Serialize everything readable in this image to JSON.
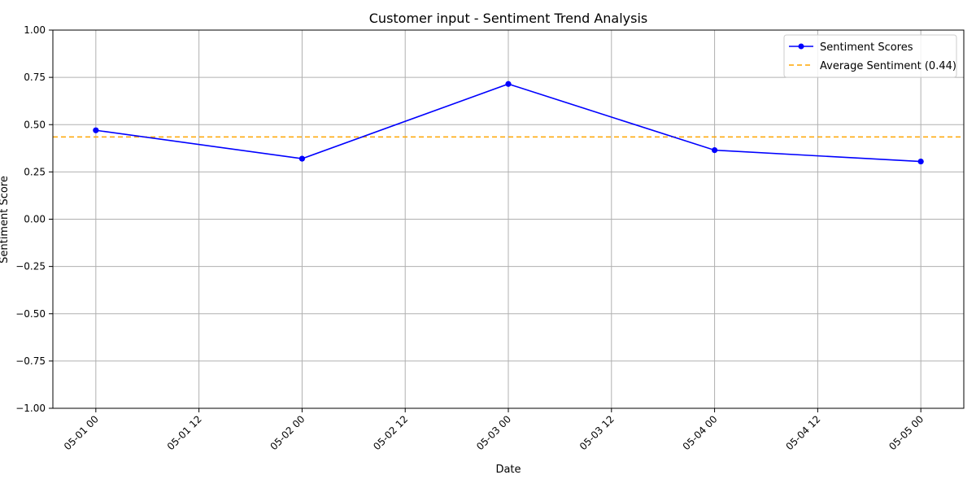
{
  "chart_data": {
    "type": "line",
    "title": "Customer input - Sentiment Trend Analysis",
    "xlabel": "Date",
    "ylabel": "Sentiment Score",
    "x": [
      "05-01 00",
      "05-02 00",
      "05-03 00",
      "05-04 00",
      "05-05 00"
    ],
    "x_tick_labels": [
      "05-01 00",
      "05-01 12",
      "05-02 00",
      "05-02 12",
      "05-03 00",
      "05-03 12",
      "05-04 00",
      "05-04 12",
      "05-05 00"
    ],
    "y_tick_labels": [
      "1.00",
      "0.75",
      "0.50",
      "0.25",
      "0.00",
      "−0.25",
      "−0.50",
      "−0.75",
      "−1.00"
    ],
    "ylim": [
      -1.0,
      1.0
    ],
    "x_range_hours": [
      -5,
      101
    ],
    "grid": true,
    "legend": "top-right",
    "series": [
      {
        "name": "Sentiment Scores",
        "hours": [
          0,
          24,
          48,
          72,
          96
        ],
        "values": [
          0.47,
          0.32,
          0.715,
          0.365,
          0.305
        ],
        "color": "#0000ff",
        "marker": "circle"
      }
    ],
    "reference_line": {
      "name": "Average Sentiment (0.44)",
      "value": 0.435,
      "color": "#ffa500",
      "style": "dashed"
    }
  }
}
